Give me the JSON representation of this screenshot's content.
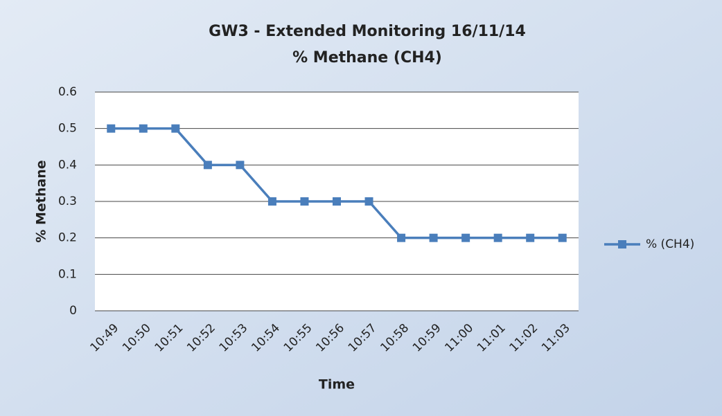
{
  "chart_data": {
    "type": "line",
    "title": "GW3 - Extended Monitoring 16/11/14",
    "subtitle": "% Methane (CH4)",
    "x_label": "Time",
    "y_label": "% Methane",
    "categories": [
      "10:49",
      "10:50",
      "10:51",
      "10:52",
      "10:53",
      "10:54",
      "10:55",
      "10:56",
      "10:57",
      "10:58",
      "10:59",
      "11:00",
      "11:01",
      "11:02",
      "11:03"
    ],
    "series": [
      {
        "name": "% (CH4)",
        "color": "#4a7ebb",
        "values": [
          0.5,
          0.5,
          0.5,
          0.4,
          0.4,
          0.3,
          0.3,
          0.3,
          0.3,
          0.2,
          0.2,
          0.2,
          0.2,
          0.2,
          0.2
        ]
      }
    ],
    "ylim": [
      0,
      0.6
    ],
    "yticks": [
      0,
      0.1,
      0.2,
      0.3,
      0.4,
      0.5,
      0.6
    ],
    "grid": true,
    "legend": "right"
  }
}
